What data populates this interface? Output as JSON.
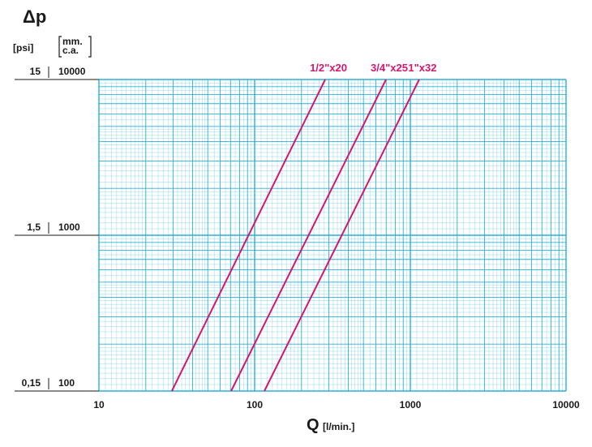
{
  "chart_data": {
    "type": "line",
    "title": "Δp",
    "y_unit_left": "[psi]",
    "y_unit_right": [
      "mm.",
      "c.a."
    ],
    "x_label": "Q",
    "x_unit": "[l/min.]",
    "log_x": true,
    "log_y": true,
    "grid": true,
    "grid_color": "#2ab0d8",
    "xlim": [
      10,
      10000
    ],
    "xticks": [
      10,
      100,
      1000,
      10000
    ],
    "ylim": [
      100,
      10000
    ],
    "yticks": [
      100,
      1000,
      10000
    ],
    "y2lim": [
      0.15,
      15
    ],
    "y2ticks": [
      {
        "value": 0.15,
        "label": "0,15"
      },
      {
        "value": 1.5,
        "label": "1,5"
      },
      15
    ],
    "series": [
      {
        "name": "1/2\"x20",
        "color": "#d6166e",
        "x": [
          29.4,
          284
        ],
        "values": [
          100,
          10000
        ]
      },
      {
        "name": "3/4\"x25",
        "color": "#d6166e",
        "x": [
          70.6,
          698
        ],
        "values": [
          100,
          10000
        ]
      },
      {
        "name": "1\"x32",
        "color": "#d6166e",
        "x": [
          115.5,
          1140
        ],
        "values": [
          100,
          10000
        ]
      }
    ]
  }
}
